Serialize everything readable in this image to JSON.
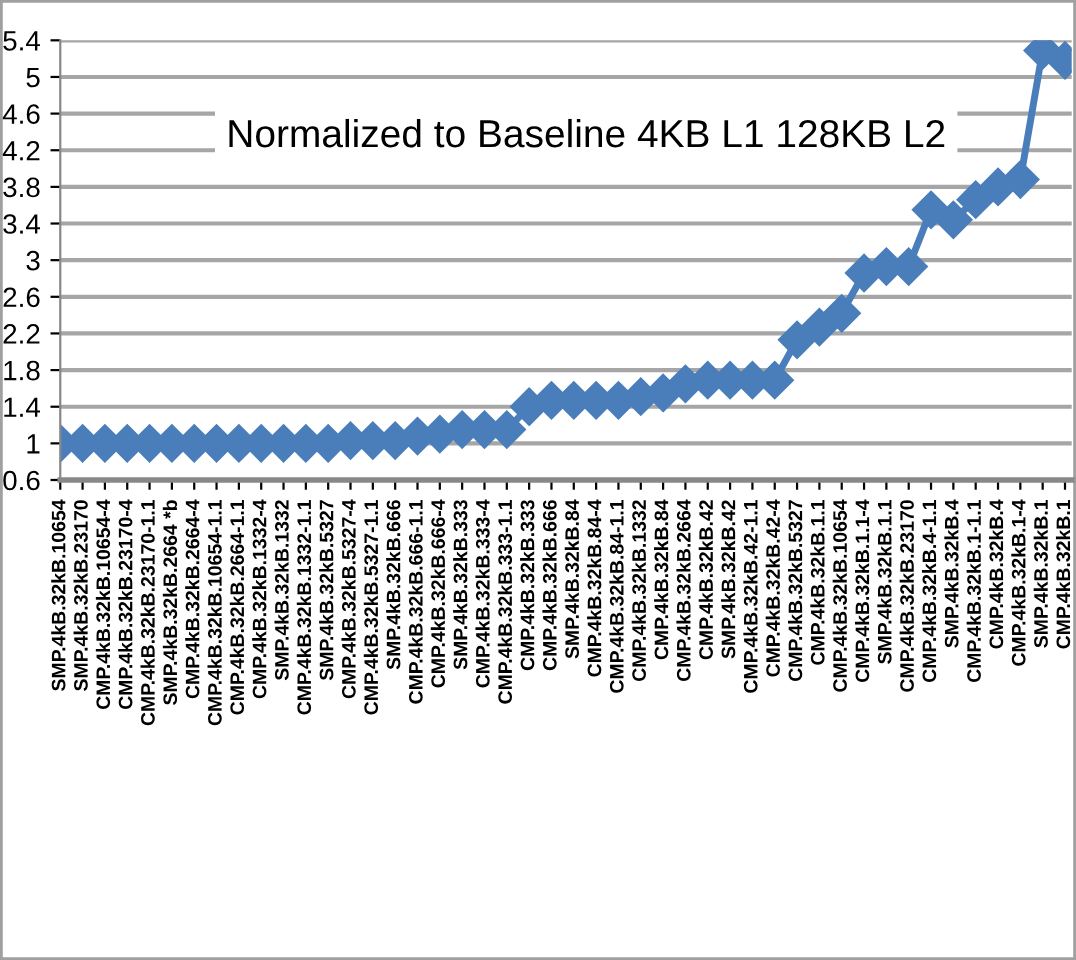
{
  "chart_data": {
    "type": "line",
    "title": "Normalized to Baseline 4KB L1 128KB L2",
    "categories": [
      "SMP.4kB.32kB.10654",
      "SMP.4kB.32kB.23170",
      "CMP.4kB.32kB.10654-4",
      "CMP.4kB.32kB.23170-4",
      "CMP.4kB.32kB.23170-1.1",
      "SMP.4kB.32kB.2664 *b",
      "CMP.4kB.32kB.2664-4",
      "CMP.4kB.32kB.10654-1.1",
      "CMP.4kB.32kB.2664-1.1",
      "CMP.4kB.32kB.1332-4",
      "SMP.4kB.32kB.1332",
      "CMP.4kB.32kB.1332-1.1",
      "SMP.4kB.32kB.5327",
      "CMP.4kB.32kB.5327-4",
      "CMP.4kB.32kB.5327-1.1",
      "SMP.4kB.32kB.666",
      "CMP.4kB.32kB.666-1.1",
      "CMP.4kB.32kB.666-4",
      "SMP.4kB.32kB.333",
      "CMP.4kB.32kB.333-4",
      "CMP.4kB.32kB.333-1.1",
      "CMP.4kB.32kB.333",
      "CMP.4kB.32kB.666",
      "SMP.4kB.32kB.84",
      "CMP.4kB.32kB.84-4",
      "CMP.4kB.32kB.84-1.1",
      "CMP.4kB.32kB.1332",
      "CMP.4kB.32kB.84",
      "CMP.4kB.32kB.2664",
      "CMP.4kB.32kB.42",
      "SMP.4kB.32kB.42",
      "CMP.4kB.32kB.42-1.1",
      "CMP.4kB.32kB.42-4",
      "CMP.4kB.32kB.5327",
      "CMP.4kB.32kB.1.1",
      "CMP.4kB.32kB.10654",
      "CMP.4kB.32kB.1.1-4",
      "SMP.4kB.32kB.1.1",
      "CMP.4kB.32kB.23170",
      "CMP.4kB.32kB.4-1.1",
      "SMP.4kB.32kB.4",
      "CMP.4kB.32kB.1-1.1",
      "CMP.4kB.32kB.4",
      "CMP.4kB.32kB.1-4",
      "SMP.4kB.32kB.1",
      "CMP.4kB.32kB.1"
    ],
    "series": [
      {
        "color": "#4a7ebb",
        "values": [
          1.0,
          1.0,
          1.0,
          1.0,
          1.0,
          1.0,
          1.0,
          1.0,
          1.0,
          1.0,
          1.0,
          1.0,
          1.0,
          1.03,
          1.03,
          1.03,
          1.08,
          1.1,
          1.15,
          1.15,
          1.15,
          1.4,
          1.47,
          1.47,
          1.47,
          1.47,
          1.51,
          1.55,
          1.65,
          1.69,
          1.69,
          1.69,
          1.69,
          2.13,
          2.27,
          2.42,
          2.86,
          2.93,
          2.93,
          3.55,
          3.44,
          3.66,
          3.8,
          3.88,
          5.29,
          5.18
        ]
      }
    ],
    "ylim": [
      0.6,
      5.4
    ],
    "yticks": [
      0.6,
      1,
      1.4,
      1.8,
      2.2,
      2.6,
      3,
      3.4,
      3.8,
      4.2,
      4.6,
      5,
      5.4
    ],
    "grid": "y",
    "marker": "diamond",
    "line_style": "solid",
    "legend": false
  }
}
